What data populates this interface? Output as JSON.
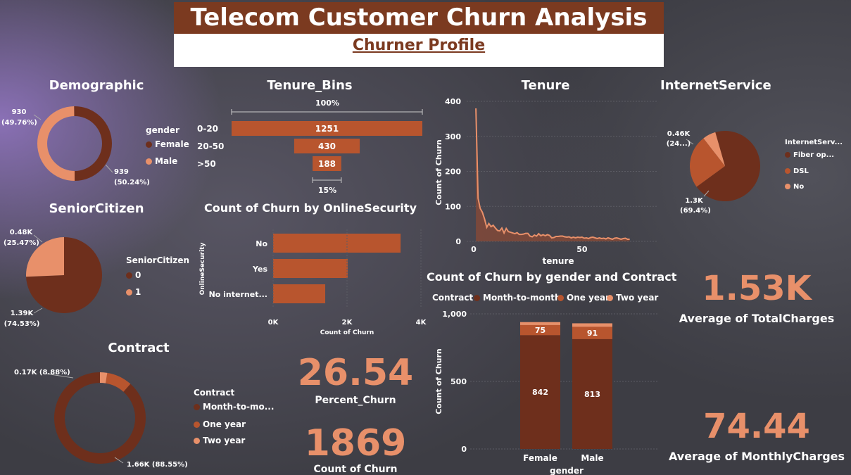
{
  "header": {
    "title": "Telecom Customer Churn Analysis",
    "subtitle": "Churner Profile"
  },
  "colors": {
    "dark": "#6e2f1c",
    "mid": "#b8552e",
    "light": "#e8906a",
    "banner": "#7b3a20"
  },
  "chart_data": [
    {
      "id": "demographic",
      "type": "pie",
      "variant": "donut",
      "title": "Demographic",
      "legend_title": "gender",
      "slices": [
        {
          "name": "Female",
          "value": 939,
          "label": "939\n(50.24%)",
          "color": "#6e2f1c"
        },
        {
          "name": "Male",
          "value": 930,
          "label": "930\n(49.76%)",
          "color": "#e8906a"
        }
      ]
    },
    {
      "id": "seniorcitizen",
      "type": "pie",
      "title": "SeniorCitizen",
      "legend_title": "SeniorCitizen",
      "slices": [
        {
          "name": "0",
          "value": 1390,
          "label": "1.39K\n(74.53%)",
          "color": "#6e2f1c"
        },
        {
          "name": "1",
          "value": 480,
          "label": "0.48K\n(25.47%)",
          "color": "#e8906a"
        }
      ]
    },
    {
      "id": "contract",
      "type": "pie",
      "variant": "donut",
      "title": "Contract",
      "legend_title": "Contract",
      "slices": [
        {
          "name": "Month-to-mo...",
          "value": 1660,
          "label": "1.66K (88.55%)",
          "color": "#6e2f1c"
        },
        {
          "name": "One year",
          "value": 170,
          "label": "0.17K (8.88%)",
          "color": "#b8552e"
        },
        {
          "name": "Two year",
          "value": 48,
          "label": "",
          "color": "#e8906a"
        }
      ]
    },
    {
      "id": "tenure_bins",
      "type": "bar",
      "variant": "funnel",
      "title": "Tenure_Bins",
      "categories": [
        "0-20",
        "20-50",
        ">50"
      ],
      "values": [
        1251,
        430,
        188
      ],
      "top_label": "100%",
      "bottom_label": "15%"
    },
    {
      "id": "onlinesecurity",
      "type": "bar",
      "orientation": "horizontal",
      "title": "Count of Churn by OnlineSecurity",
      "categories": [
        "No",
        "Yes",
        "No internet..."
      ],
      "values": [
        3450,
        2020,
        1410
      ],
      "xlabel": "Count of Churn",
      "ylabel": "OnlineSecurity",
      "xlim": [
        0,
        4000
      ],
      "xticks": [
        "0K",
        "2K",
        "4K"
      ]
    },
    {
      "id": "tenure",
      "type": "area",
      "title": "Tenure",
      "xlabel": "tenure",
      "ylabel": "Count of Churn",
      "xlim": [
        0,
        72
      ],
      "ylim": [
        0,
        400
      ],
      "xticks": [
        "0",
        "50"
      ],
      "yticks": [
        "0",
        "100",
        "200",
        "300",
        "400"
      ],
      "x": [
        1,
        2,
        3,
        4,
        5,
        6,
        7,
        8,
        9,
        10,
        11,
        12,
        13,
        14,
        15,
        16,
        17,
        18,
        19,
        20,
        21,
        22,
        23,
        24,
        25,
        26,
        27,
        28,
        29,
        30,
        31,
        32,
        33,
        34,
        35,
        36,
        37,
        38,
        39,
        40,
        41,
        42,
        43,
        44,
        45,
        46,
        47,
        48,
        49,
        50,
        51,
        52,
        53,
        54,
        55,
        56,
        57,
        58,
        59,
        60,
        61,
        62,
        63,
        64,
        65,
        66,
        67,
        68,
        69,
        70,
        71,
        72
      ],
      "values": [
        380,
        123,
        94,
        83,
        64,
        40,
        51,
        42,
        46,
        38,
        31,
        30,
        38,
        24,
        37,
        28,
        26,
        24,
        22,
        25,
        20,
        20,
        21,
        23,
        23,
        15,
        13,
        18,
        15,
        22,
        16,
        19,
        16,
        19,
        17,
        10,
        11,
        14,
        14,
        15,
        15,
        13,
        12,
        13,
        10,
        12,
        10,
        12,
        11,
        12,
        9,
        10,
        8,
        11,
        12,
        10,
        8,
        10,
        8,
        9,
        7,
        10,
        8,
        6,
        9,
        10,
        8,
        6,
        8,
        9,
        6,
        6
      ]
    },
    {
      "id": "gender_contract",
      "type": "bar",
      "variant": "stacked",
      "title": "Count of Churn by gender and Contract",
      "legend_title": "Contract",
      "categories": [
        "Female",
        "Male"
      ],
      "series": [
        {
          "name": "Month-to-month",
          "values": [
            842,
            813
          ],
          "color": "#6e2f1c"
        },
        {
          "name": "One year",
          "values": [
            75,
            91
          ],
          "color": "#b8552e"
        },
        {
          "name": "Two year",
          "values": [
            22,
            26
          ],
          "color": "#e8906a"
        }
      ],
      "xlabel": "gender",
      "ylabel": "Count of Churn",
      "ylim": [
        0,
        1000
      ],
      "yticks": [
        "0",
        "500",
        "1,000"
      ]
    },
    {
      "id": "internetservice",
      "type": "pie",
      "title": "InternetService",
      "legend_title": "InternetServ...",
      "slices": [
        {
          "name": "Fiber op...",
          "value": 1300,
          "label": "1.3K\n(69.4%)",
          "color": "#6e2f1c"
        },
        {
          "name": "DSL",
          "value": 460,
          "label": "0.46K\n(24...)",
          "color": "#b8552e"
        },
        {
          "name": "No",
          "value": 113,
          "label": "",
          "color": "#e8906a"
        }
      ]
    }
  ],
  "kpis": {
    "percent_churn": {
      "value": "26.54",
      "label": "Percent_Churn"
    },
    "count_churn": {
      "value": "1869",
      "label": "Count of Churn"
    },
    "avg_total": {
      "value": "1.53K",
      "label": "Average of TotalCharges"
    },
    "avg_monthly": {
      "value": "74.44",
      "label": "Average of MonthlyCharges"
    }
  }
}
